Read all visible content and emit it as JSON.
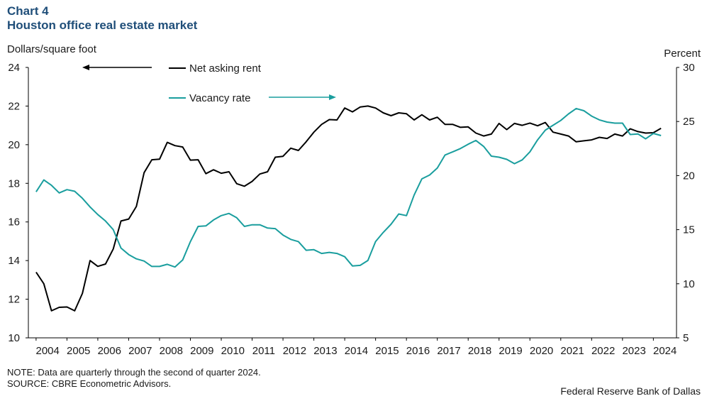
{
  "header": {
    "chart_label": "Chart 4",
    "title": "Houston office real estate market"
  },
  "chart_data": {
    "type": "line",
    "title": "Houston office real estate market",
    "x_range": [
      2003.75,
      2024.75
    ],
    "x_ticks": [
      2004,
      2005,
      2006,
      2007,
      2008,
      2009,
      2010,
      2011,
      2012,
      2013,
      2014,
      2015,
      2016,
      2017,
      2018,
      2019,
      2020,
      2021,
      2022,
      2023,
      2024
    ],
    "y_left": {
      "label": "Dollars/square foot",
      "range": [
        10,
        24
      ],
      "ticks": [
        10,
        12,
        14,
        16,
        18,
        20,
        22,
        24
      ]
    },
    "y_right": {
      "label": "Percent",
      "range": [
        5,
        30
      ],
      "ticks": [
        5,
        10,
        15,
        20,
        25,
        30
      ]
    },
    "grid": false,
    "series": [
      {
        "name": "Net asking rent",
        "axis": "left",
        "color": "#000000",
        "x_start": 2004.0,
        "x_step": 0.25,
        "values": [
          13.4,
          12.8,
          11.4,
          11.58,
          11.6,
          11.4,
          12.3,
          14.0,
          13.7,
          13.82,
          14.6,
          16.05,
          16.15,
          16.8,
          18.55,
          19.22,
          19.25,
          20.12,
          19.95,
          19.88,
          19.2,
          19.22,
          18.5,
          18.7,
          18.52,
          18.6,
          17.98,
          17.85,
          18.1,
          18.48,
          18.6,
          19.35,
          19.4,
          19.82,
          19.7,
          20.15,
          20.65,
          21.05,
          21.3,
          21.28,
          21.9,
          21.7,
          21.95,
          22.0,
          21.9,
          21.65,
          21.5,
          21.65,
          21.6,
          21.28,
          21.55,
          21.28,
          21.42,
          21.05,
          21.05,
          20.9,
          20.92,
          20.6,
          20.45,
          20.55,
          21.1,
          20.78,
          21.1,
          21.0,
          21.12,
          20.98,
          21.15,
          20.65,
          20.55,
          20.45,
          20.15,
          20.2,
          20.25,
          20.38,
          20.32,
          20.55,
          20.45,
          20.82,
          20.68,
          20.6,
          20.62,
          20.85
        ]
      },
      {
        "name": "Vacancy rate",
        "axis": "right",
        "color": "#1a9e9e",
        "x_start": 2004.0,
        "x_step": 0.25,
        "values": [
          18.5,
          19.6,
          19.1,
          18.4,
          18.7,
          18.55,
          17.9,
          17.1,
          16.4,
          15.8,
          15.0,
          13.3,
          12.7,
          12.3,
          12.1,
          11.6,
          11.6,
          11.8,
          11.55,
          12.2,
          13.9,
          15.3,
          15.35,
          15.9,
          16.3,
          16.5,
          16.1,
          15.3,
          15.45,
          15.45,
          15.15,
          15.1,
          14.5,
          14.1,
          13.9,
          13.1,
          13.15,
          12.8,
          12.9,
          12.8,
          12.5,
          11.65,
          11.7,
          12.15,
          13.9,
          14.75,
          15.5,
          16.45,
          16.3,
          18.2,
          19.7,
          20.05,
          20.7,
          21.9,
          22.2,
          22.5,
          22.9,
          23.25,
          22.7,
          21.8,
          21.7,
          21.5,
          21.1,
          21.45,
          22.2,
          23.3,
          24.2,
          24.65,
          25.1,
          25.7,
          26.2,
          26.0,
          25.5,
          25.15,
          24.95,
          24.85,
          24.85,
          23.8,
          23.85,
          23.4,
          23.9,
          23.7
        ]
      }
    ],
    "legend": [
      {
        "name": "Net asking rent",
        "arrow": "left"
      },
      {
        "name": "Vacancy rate",
        "arrow": "right"
      }
    ]
  },
  "footer": {
    "note": "NOTE: Data are quarterly through the second of quarter 2024.",
    "source": "SOURCE: CBRE Econometric Advisors.",
    "credit": "Federal Reserve Bank of Dallas"
  }
}
